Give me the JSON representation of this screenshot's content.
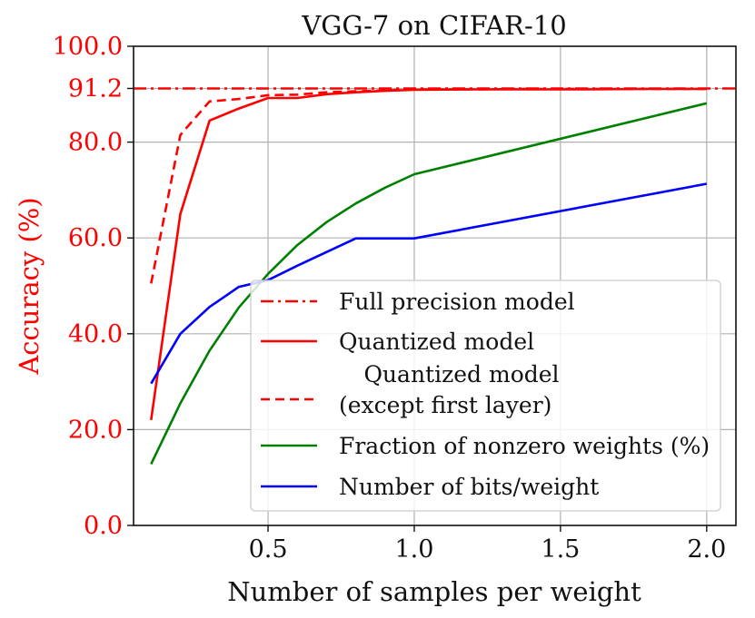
{
  "chart_data": {
    "type": "line",
    "title": "VGG-7 on CIFAR-10",
    "xlabel": "Number of samples per weight",
    "ylabel": "Accuracy (%)",
    "xlim": [
      0.04,
      2.1
    ],
    "ylim": [
      0,
      100
    ],
    "xticks": [
      0.5,
      1.0,
      1.5,
      2.0
    ],
    "xtick_labels": [
      "0.5",
      "1.0",
      "1.5",
      "2.0"
    ],
    "yticks": [
      0,
      20,
      40,
      60,
      80,
      91.2,
      100
    ],
    "ytick_labels": [
      "0.0",
      "20.0",
      "40.0",
      "60.0",
      "80.0",
      "91.2",
      "100.0"
    ],
    "grid": true,
    "legend_position": "lower-right",
    "series": [
      {
        "name": "Full precision model",
        "color": "#ff0000",
        "style": "dashdot",
        "x": [
          0.04,
          2.1
        ],
        "y": [
          91.2,
          91.2
        ]
      },
      {
        "name": "Quantized model",
        "color": "#ff0000",
        "style": "solid",
        "x": [
          0.1,
          0.2,
          0.3,
          0.4,
          0.5,
          0.6,
          0.7,
          0.8,
          0.9,
          1.0,
          1.2,
          1.4,
          1.6,
          1.8,
          2.0
        ],
        "y": [
          22,
          65,
          84.5,
          87,
          89.2,
          89.2,
          90,
          90.4,
          90.7,
          90.9,
          91.0,
          91.0,
          91.0,
          91.1,
          91.1
        ]
      },
      {
        "name": "Quantized model\n(except first layer)",
        "legend_lines": [
          "Quantized model",
          "(except first layer)"
        ],
        "color": "#ff0000",
        "style": "dashed",
        "x": [
          0.1,
          0.2,
          0.3,
          0.4,
          0.5,
          0.6,
          0.7,
          0.8,
          0.9,
          1.0,
          1.2,
          1.4,
          1.6,
          1.8,
          2.0
        ],
        "y": [
          50.5,
          81.5,
          88.5,
          89,
          89.8,
          89.9,
          90.4,
          90.6,
          90.8,
          91.0,
          91.0,
          91.1,
          91.1,
          91.1,
          91.1
        ]
      },
      {
        "name": "Fraction of nonzero weights (%)",
        "color": "#008000",
        "style": "solid",
        "x": [
          0.1,
          0.2,
          0.3,
          0.4,
          0.5,
          0.6,
          0.7,
          0.8,
          0.9,
          1.0,
          2.0
        ],
        "y": [
          12.8,
          25.5,
          36.5,
          45.5,
          52.5,
          58.5,
          63.3,
          67.2,
          70.5,
          73.3,
          88.1
        ]
      },
      {
        "name": "Number of bits/weight",
        "color": "#0000ff",
        "style": "solid",
        "x": [
          0.1,
          0.2,
          0.3,
          0.4,
          0.5,
          0.6,
          0.8,
          1.0,
          2.0
        ],
        "y": [
          29.6,
          40,
          45.6,
          49.8,
          51.2,
          54.2,
          59.9,
          59.9,
          71.3
        ]
      }
    ]
  }
}
